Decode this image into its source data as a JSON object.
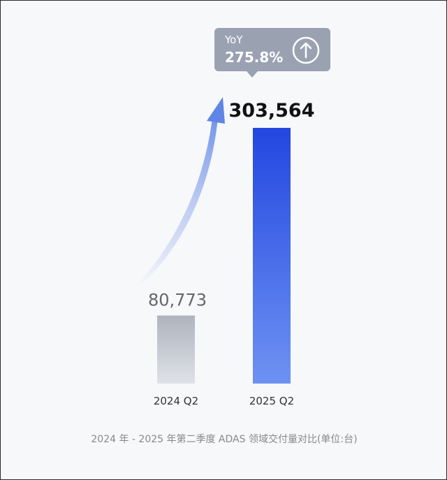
{
  "chart_data": {
    "type": "bar",
    "categories": [
      "2024 Q2",
      "2025 Q2"
    ],
    "values": [
      80773,
      303564
    ],
    "value_labels": [
      "80,773",
      "303,564"
    ],
    "caption": "2024 年 - 2025 年第二季度 ADAS 领域交付量对比(单位:台)",
    "grid": false,
    "annotation": {
      "label": "YoY",
      "value": "275.8%",
      "icon": "arrow-up-circle-icon"
    },
    "colors": {
      "bar_2024": "#b0b5bf",
      "bar_2025": "#2347e0",
      "callout": "#9aa2b2"
    }
  }
}
